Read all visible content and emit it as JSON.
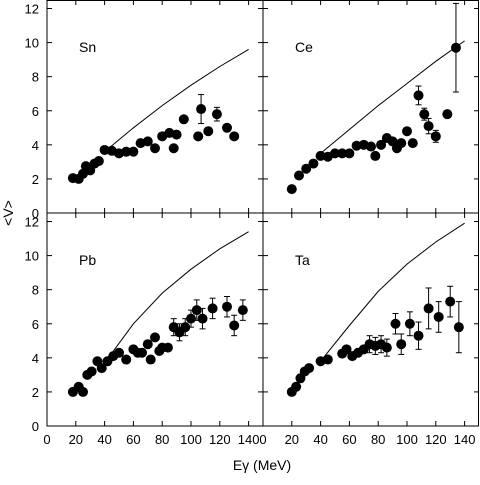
{
  "chart_data": {
    "type": "scatter",
    "layout": "2x2 shared axes",
    "ylabel": "<V>",
    "xlabel": "Eγ (MeV)",
    "xlim": [
      0,
      150
    ],
    "ylim": [
      0,
      12.5
    ],
    "x_ticks": [
      0,
      20,
      40,
      60,
      80,
      100,
      120,
      140
    ],
    "y_ticks": [
      0,
      2,
      4,
      6,
      8,
      10,
      12
    ],
    "grid": false,
    "panels": [
      {
        "label": "Sn",
        "position": "top-left",
        "points": [
          [
            18,
            2.05
          ],
          [
            22,
            2.0
          ],
          [
            25,
            2.3
          ],
          [
            27,
            2.75
          ],
          [
            30,
            2.5
          ],
          [
            33,
            2.9
          ],
          [
            36,
            3.05
          ],
          [
            40,
            3.7
          ],
          [
            45,
            3.65
          ],
          [
            50,
            3.5
          ],
          [
            55,
            3.6
          ],
          [
            60,
            3.6
          ],
          [
            65,
            4.1
          ],
          [
            70,
            4.2
          ],
          [
            75,
            3.8
          ],
          [
            80,
            4.5
          ],
          [
            85,
            4.7
          ],
          [
            88,
            3.8
          ],
          [
            90,
            4.6
          ],
          [
            95,
            5.5
          ],
          [
            105,
            4.5
          ],
          [
            107,
            6.1
          ],
          [
            112,
            4.8
          ],
          [
            118,
            5.8
          ],
          [
            125,
            5.0
          ],
          [
            130,
            4.5
          ]
        ],
        "errors": [
          [
            107,
            6.1,
            0.85
          ],
          [
            118,
            5.8,
            0.4
          ]
        ],
        "curve": [
          [
            40,
            3.6
          ],
          [
            60,
            5.0
          ],
          [
            80,
            6.3
          ],
          [
            100,
            7.5
          ],
          [
            120,
            8.6
          ],
          [
            140,
            9.6
          ]
        ]
      },
      {
        "label": "Ce",
        "position": "top-right",
        "points": [
          [
            20,
            1.4
          ],
          [
            25,
            2.2
          ],
          [
            30,
            2.6
          ],
          [
            35,
            2.9
          ],
          [
            40,
            3.35
          ],
          [
            45,
            3.3
          ],
          [
            50,
            3.5
          ],
          [
            55,
            3.5
          ],
          [
            60,
            3.5
          ],
          [
            65,
            3.95
          ],
          [
            70,
            4.0
          ],
          [
            75,
            3.9
          ],
          [
            78,
            3.35
          ],
          [
            82,
            4.0
          ],
          [
            86,
            4.4
          ],
          [
            90,
            4.2
          ],
          [
            93,
            3.8
          ],
          [
            96,
            4.1
          ],
          [
            100,
            4.8
          ],
          [
            104,
            4.1
          ],
          [
            108,
            6.9
          ],
          [
            112,
            5.8
          ],
          [
            115,
            5.1
          ],
          [
            120,
            4.5
          ],
          [
            128,
            5.8
          ],
          [
            134,
            9.7
          ]
        ],
        "errors": [
          [
            108,
            6.9,
            0.55
          ],
          [
            112,
            5.8,
            0.35
          ],
          [
            115,
            5.1,
            0.45
          ],
          [
            120,
            4.5,
            0.35
          ],
          [
            134,
            9.7,
            2.6
          ]
        ],
        "curve": [
          [
            40,
            3.5
          ],
          [
            60,
            4.9
          ],
          [
            80,
            6.3
          ],
          [
            100,
            7.6
          ],
          [
            120,
            8.9
          ],
          [
            140,
            10.1
          ]
        ]
      },
      {
        "label": "Pb",
        "position": "bottom-left",
        "points": [
          [
            18,
            2.0
          ],
          [
            22,
            2.3
          ],
          [
            25,
            2.0
          ],
          [
            28,
            3.0
          ],
          [
            31,
            3.2
          ],
          [
            35,
            3.8
          ],
          [
            38,
            3.4
          ],
          [
            42,
            3.8
          ],
          [
            46,
            4.1
          ],
          [
            50,
            4.3
          ],
          [
            55,
            3.9
          ],
          [
            60,
            4.5
          ],
          [
            63,
            4.3
          ],
          [
            66,
            4.3
          ],
          [
            70,
            4.8
          ],
          [
            72,
            3.9
          ],
          [
            75,
            5.2
          ],
          [
            78,
            4.4
          ],
          [
            80,
            4.6
          ],
          [
            84,
            4.6
          ],
          [
            88,
            5.8
          ],
          [
            92,
            5.5
          ],
          [
            96,
            5.8
          ],
          [
            100,
            6.3
          ],
          [
            104,
            6.8
          ],
          [
            108,
            6.3
          ],
          [
            115,
            6.9
          ],
          [
            125,
            7.0
          ],
          [
            130,
            5.9
          ],
          [
            136,
            6.8
          ]
        ],
        "errors": [
          [
            88,
            5.8,
            0.5
          ],
          [
            92,
            5.5,
            0.5
          ],
          [
            96,
            5.8,
            0.5
          ],
          [
            100,
            6.3,
            0.5
          ],
          [
            104,
            6.8,
            0.6
          ],
          [
            108,
            6.3,
            0.6
          ],
          [
            115,
            6.9,
            0.6
          ],
          [
            125,
            7.0,
            0.6
          ],
          [
            130,
            5.9,
            0.6
          ],
          [
            136,
            6.8,
            0.6
          ]
        ],
        "curve": [
          [
            40,
            3.7
          ],
          [
            60,
            6.0
          ],
          [
            80,
            7.8
          ],
          [
            100,
            9.2
          ],
          [
            120,
            10.4
          ],
          [
            140,
            11.4
          ]
        ]
      },
      {
        "label": "Ta",
        "position": "bottom-right",
        "points": [
          [
            20,
            2.0
          ],
          [
            23,
            2.3
          ],
          [
            26,
            2.8
          ],
          [
            29,
            3.2
          ],
          [
            32,
            3.4
          ],
          [
            40,
            3.8
          ],
          [
            45,
            3.9
          ],
          [
            55,
            4.25
          ],
          [
            58,
            4.5
          ],
          [
            62,
            4.1
          ],
          [
            66,
            4.3
          ],
          [
            70,
            4.5
          ],
          [
            74,
            4.8
          ],
          [
            78,
            4.7
          ],
          [
            82,
            4.8
          ],
          [
            86,
            4.6
          ],
          [
            92,
            6.0
          ],
          [
            96,
            4.8
          ],
          [
            102,
            6.0
          ],
          [
            108,
            5.3
          ],
          [
            115,
            6.9
          ],
          [
            122,
            6.4
          ],
          [
            130,
            7.3
          ],
          [
            136,
            5.8
          ]
        ],
        "errors": [
          [
            74,
            4.8,
            0.5
          ],
          [
            78,
            4.7,
            0.5
          ],
          [
            82,
            4.8,
            0.5
          ],
          [
            86,
            4.6,
            0.5
          ],
          [
            92,
            6.0,
            0.6
          ],
          [
            96,
            4.8,
            0.6
          ],
          [
            102,
            6.0,
            0.7
          ],
          [
            108,
            5.3,
            0.8
          ],
          [
            115,
            6.9,
            1.2
          ],
          [
            122,
            6.4,
            0.9
          ],
          [
            130,
            7.3,
            0.9
          ],
          [
            136,
            5.8,
            1.5
          ]
        ],
        "curve": [
          [
            40,
            3.8
          ],
          [
            60,
            5.9
          ],
          [
            80,
            7.9
          ],
          [
            100,
            9.5
          ],
          [
            120,
            10.8
          ],
          [
            140,
            11.9
          ]
        ]
      }
    ]
  }
}
